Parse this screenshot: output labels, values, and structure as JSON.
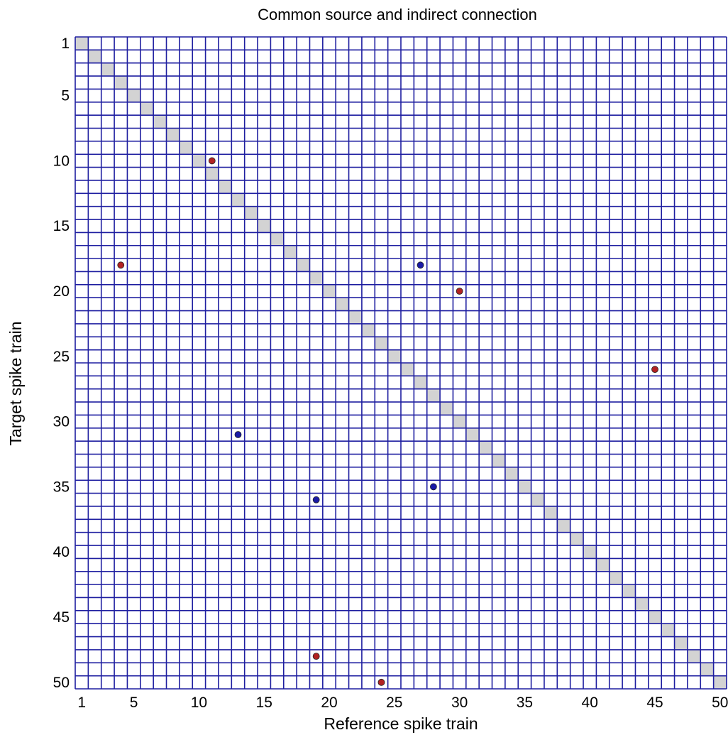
{
  "chart_data": {
    "type": "scatter",
    "title": "Common source and indirect connection",
    "xlabel": "Reference spike train",
    "ylabel": "Target spike train",
    "xlim": [
      1,
      50
    ],
    "ylim": [
      1,
      50
    ],
    "y_inverted": true,
    "grid": true,
    "x_ticks": [
      "1",
      "5",
      "10",
      "15",
      "20",
      "25",
      "30",
      "35",
      "40",
      "45",
      "50"
    ],
    "y_ticks": [
      "1",
      "5",
      "10",
      "15",
      "20",
      "25",
      "30",
      "35",
      "40",
      "45",
      "50"
    ],
    "diagonal_shaded": true,
    "series": [
      {
        "color": "#b22222",
        "points": [
          {
            "x": 11,
            "y": 10
          },
          {
            "x": 4,
            "y": 18
          },
          {
            "x": 30,
            "y": 20
          },
          {
            "x": 45,
            "y": 26
          },
          {
            "x": 19,
            "y": 48
          },
          {
            "x": 24,
            "y": 50
          }
        ]
      },
      {
        "color": "#1a1aa6",
        "points": [
          {
            "x": 27,
            "y": 18
          },
          {
            "x": 13,
            "y": 31
          },
          {
            "x": 28,
            "y": 35
          },
          {
            "x": 19,
            "y": 36
          }
        ]
      }
    ],
    "colors": {
      "grid": "#1e1ea0",
      "diagonal": "#d3d3d3"
    }
  }
}
